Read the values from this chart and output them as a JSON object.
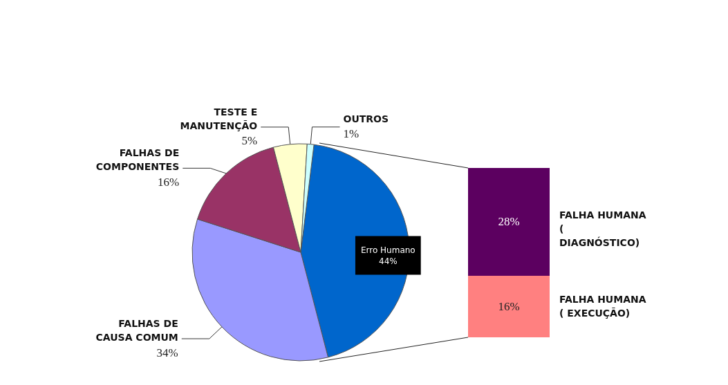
{
  "chart_data": [
    {
      "type": "pie",
      "categories": [
        "Erro Humano",
        "FALHAS DE CAUSA COMUM",
        "FALHAS DE COMPONENTES",
        "TESTE E MANUTENÇÃO",
        "OUTROS"
      ],
      "values": [
        44,
        34,
        16,
        5,
        1
      ],
      "value_labels": [
        "44%",
        "34%",
        "16%",
        "5%",
        "1%"
      ],
      "colors": [
        "#0066cc",
        "#9999ff",
        "#993366",
        "#ffffcc",
        "#ccffff"
      ],
      "legend": false
    },
    {
      "type": "bar",
      "stacked": true,
      "categories": [
        null
      ],
      "series": [
        {
          "name": "FALHA HUMANA ( EXECUÇÃO)",
          "color": "#ff8080",
          "values": [
            16
          ],
          "value_labels": [
            "16%"
          ]
        },
        {
          "name": "FALHA HUMANA ( DIAGNÓSTICO)",
          "color": "#5c0060",
          "values": [
            28
          ],
          "value_labels": [
            "28%"
          ]
        }
      ],
      "legend": false
    }
  ]
}
